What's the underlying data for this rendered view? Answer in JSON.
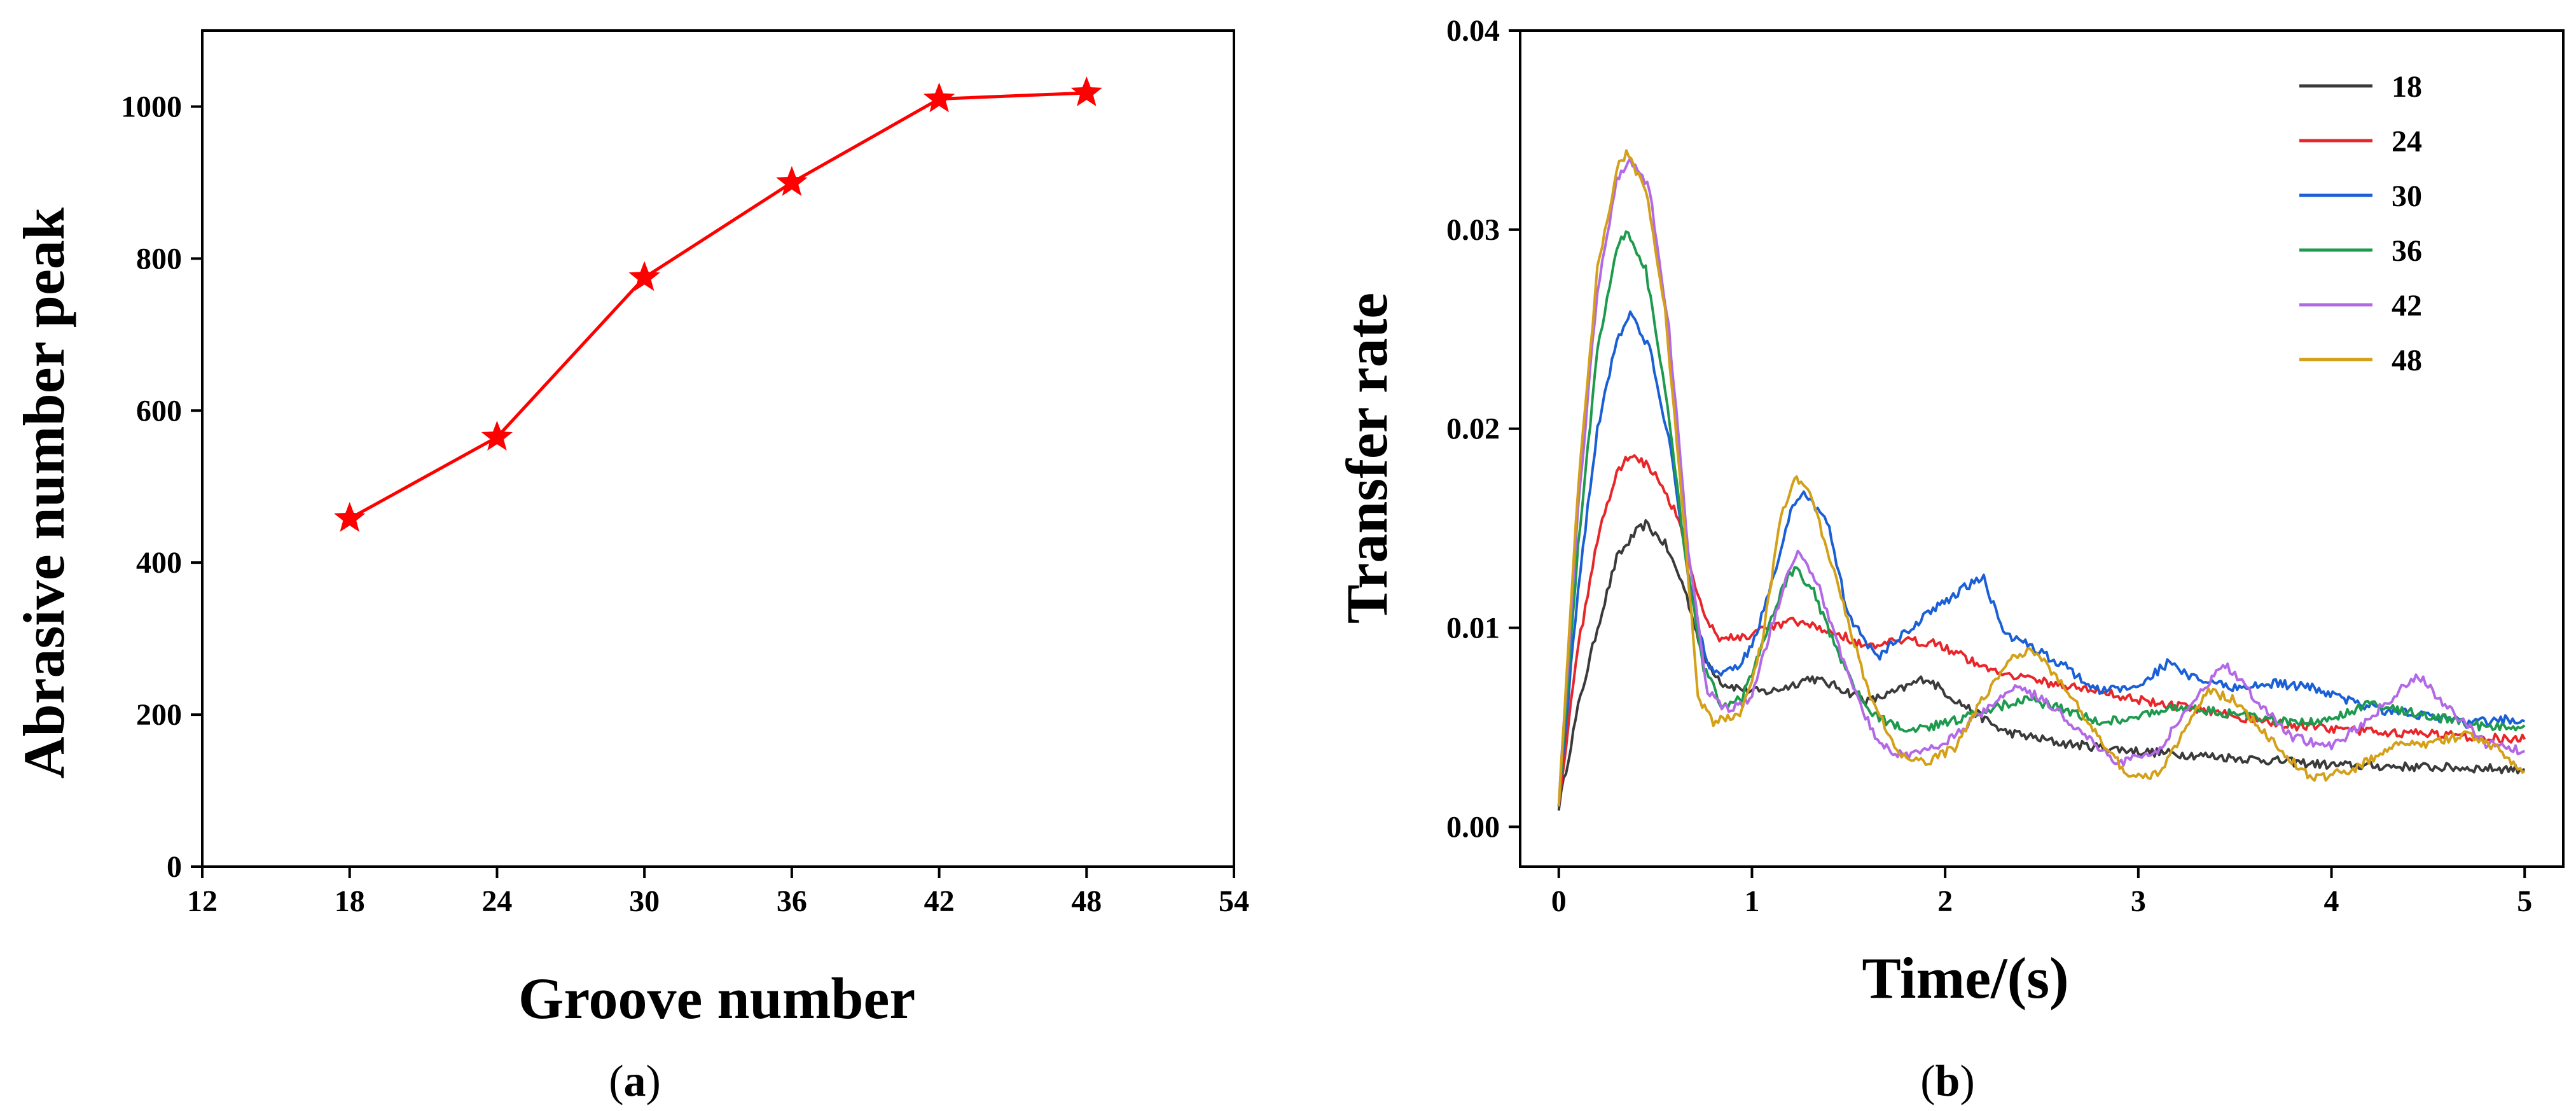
{
  "chart_data": [
    {
      "type": "line",
      "panel_label": "a",
      "xlabel": "Groove number",
      "ylabel": "Abrasive number peak",
      "xlim": [
        12,
        54
      ],
      "ylim": [
        0,
        1100
      ],
      "xticks": [
        12,
        18,
        24,
        30,
        36,
        42,
        48,
        54
      ],
      "yticks": [
        0,
        200,
        400,
        600,
        800,
        1000
      ],
      "marker": "star",
      "color": "#ff0000",
      "series": [
        {
          "x": [
            18,
            24,
            30,
            36,
            42,
            48
          ],
          "y": [
            458,
            565,
            775,
            900,
            1010,
            1018
          ]
        }
      ]
    },
    {
      "type": "line",
      "panel_label": "b",
      "xlabel": "Time/(s)",
      "ylabel": "Transfer rate",
      "xlim": [
        -0.2,
        5.2
      ],
      "ylim": [
        -0.002,
        0.04
      ],
      "xticks": [
        0,
        1,
        2,
        3,
        4,
        5
      ],
      "ytick_labels": [
        "0.00",
        "0.01",
        "0.02",
        "0.03",
        "0.04"
      ],
      "yticks": [
        0,
        0.01,
        0.02,
        0.03,
        0.04
      ],
      "legend_position": "top-right",
      "series": [
        {
          "name": "18",
          "color": "#3a3a3a",
          "points": [
            [
              0,
              0.001
            ],
            [
              0.1,
              0.006
            ],
            [
              0.2,
              0.01
            ],
            [
              0.3,
              0.0135
            ],
            [
              0.4,
              0.0148
            ],
            [
              0.45,
              0.0152
            ],
            [
              0.55,
              0.0142
            ],
            [
              0.65,
              0.012
            ],
            [
              0.75,
              0.0085
            ],
            [
              0.85,
              0.0072
            ],
            [
              1.0,
              0.0068
            ],
            [
              1.1,
              0.0068
            ],
            [
              1.2,
              0.0071
            ],
            [
              1.3,
              0.0075
            ],
            [
              1.45,
              0.007
            ],
            [
              1.6,
              0.0063
            ],
            [
              1.75,
              0.0068
            ],
            [
              1.9,
              0.0075
            ],
            [
              2.05,
              0.0064
            ],
            [
              2.3,
              0.0048
            ],
            [
              2.6,
              0.0042
            ],
            [
              3.0,
              0.0038
            ],
            [
              3.3,
              0.0036
            ],
            [
              3.6,
              0.0034
            ],
            [
              4.0,
              0.0031
            ],
            [
              4.5,
              0.003
            ],
            [
              5.0,
              0.0029
            ]
          ]
        },
        {
          "name": "24",
          "color": "#e8262a",
          "points": [
            [
              0,
              0.0012
            ],
            [
              0.1,
              0.009
            ],
            [
              0.2,
              0.0145
            ],
            [
              0.3,
              0.0178
            ],
            [
              0.38,
              0.0188
            ],
            [
              0.5,
              0.0178
            ],
            [
              0.62,
              0.0155
            ],
            [
              0.72,
              0.0115
            ],
            [
              0.82,
              0.0095
            ],
            [
              0.95,
              0.0095
            ],
            [
              1.1,
              0.01
            ],
            [
              1.2,
              0.0103
            ],
            [
              1.3,
              0.0101
            ],
            [
              1.45,
              0.0097
            ],
            [
              1.6,
              0.009
            ],
            [
              1.75,
              0.0093
            ],
            [
              1.95,
              0.0093
            ],
            [
              2.2,
              0.008
            ],
            [
              2.5,
              0.0073
            ],
            [
              2.8,
              0.0068
            ],
            [
              3.1,
              0.0062
            ],
            [
              3.4,
              0.0058
            ],
            [
              3.7,
              0.0052
            ],
            [
              4.0,
              0.0049
            ],
            [
              4.4,
              0.0047
            ],
            [
              4.8,
              0.0045
            ],
            [
              5.0,
              0.0044
            ]
          ]
        },
        {
          "name": "30",
          "color": "#1a5fd6",
          "points": [
            [
              0,
              0.0012
            ],
            [
              0.1,
              0.012
            ],
            [
              0.2,
              0.02
            ],
            [
              0.3,
              0.0245
            ],
            [
              0.37,
              0.0258
            ],
            [
              0.47,
              0.024
            ],
            [
              0.58,
              0.019
            ],
            [
              0.68,
              0.012
            ],
            [
              0.78,
              0.0078
            ],
            [
              0.9,
              0.0078
            ],
            [
              1.0,
              0.009
            ],
            [
              1.1,
              0.0122
            ],
            [
              1.2,
              0.0158
            ],
            [
              1.28,
              0.0168
            ],
            [
              1.4,
              0.015
            ],
            [
              1.5,
              0.0105
            ],
            [
              1.65,
              0.0085
            ],
            [
              1.8,
              0.0098
            ],
            [
              1.95,
              0.011
            ],
            [
              2.1,
              0.012
            ],
            [
              2.2,
              0.0125
            ],
            [
              2.3,
              0.0098
            ],
            [
              2.45,
              0.009
            ],
            [
              2.6,
              0.0082
            ],
            [
              2.8,
              0.0068
            ],
            [
              3.0,
              0.0071
            ],
            [
              3.15,
              0.0082
            ],
            [
              3.3,
              0.0074
            ],
            [
              3.5,
              0.007
            ],
            [
              3.7,
              0.0072
            ],
            [
              3.9,
              0.007
            ],
            [
              4.1,
              0.0063
            ],
            [
              4.3,
              0.0058
            ],
            [
              4.5,
              0.0056
            ],
            [
              4.7,
              0.0052
            ],
            [
              4.9,
              0.0054
            ],
            [
              5.0,
              0.0053
            ]
          ]
        },
        {
          "name": "36",
          "color": "#1e9a4e",
          "points": [
            [
              0,
              0.0012
            ],
            [
              0.1,
              0.014
            ],
            [
              0.2,
              0.024
            ],
            [
              0.3,
              0.0292
            ],
            [
              0.36,
              0.0299
            ],
            [
              0.45,
              0.028
            ],
            [
              0.55,
              0.022
            ],
            [
              0.65,
              0.014
            ],
            [
              0.75,
              0.008
            ],
            [
              0.85,
              0.006
            ],
            [
              0.95,
              0.0065
            ],
            [
              1.05,
              0.009
            ],
            [
              1.15,
              0.0118
            ],
            [
              1.22,
              0.013
            ],
            [
              1.32,
              0.0118
            ],
            [
              1.45,
              0.0085
            ],
            [
              1.6,
              0.0058
            ],
            [
              1.8,
              0.0048
            ],
            [
              2.0,
              0.0052
            ],
            [
              2.2,
              0.0058
            ],
            [
              2.4,
              0.0064
            ],
            [
              2.6,
              0.006
            ],
            [
              2.8,
              0.0052
            ],
            [
              3.0,
              0.0056
            ],
            [
              3.2,
              0.006
            ],
            [
              3.4,
              0.0058
            ],
            [
              3.6,
              0.0055
            ],
            [
              3.8,
              0.0052
            ],
            [
              4.0,
              0.0054
            ],
            [
              4.2,
              0.0062
            ],
            [
              4.4,
              0.0058
            ],
            [
              4.6,
              0.0054
            ],
            [
              4.8,
              0.005
            ],
            [
              5.0,
              0.0051
            ]
          ]
        },
        {
          "name": "42",
          "color": "#b369e6",
          "points": [
            [
              0,
              0.0012
            ],
            [
              0.1,
              0.016
            ],
            [
              0.2,
              0.027
            ],
            [
              0.3,
              0.0325
            ],
            [
              0.37,
              0.0336
            ],
            [
              0.47,
              0.032
            ],
            [
              0.57,
              0.025
            ],
            [
              0.67,
              0.014
            ],
            [
              0.77,
              0.0068
            ],
            [
              0.88,
              0.0058
            ],
            [
              1.0,
              0.0065
            ],
            [
              1.1,
              0.01
            ],
            [
              1.2,
              0.0132
            ],
            [
              1.25,
              0.0139
            ],
            [
              1.35,
              0.012
            ],
            [
              1.5,
              0.0075
            ],
            [
              1.65,
              0.0042
            ],
            [
              1.8,
              0.0035
            ],
            [
              2.0,
              0.0042
            ],
            [
              2.2,
              0.0058
            ],
            [
              2.35,
              0.007
            ],
            [
              2.5,
              0.0065
            ],
            [
              2.7,
              0.0048
            ],
            [
              2.9,
              0.0032
            ],
            [
              3.1,
              0.0038
            ],
            [
              3.3,
              0.0065
            ],
            [
              3.45,
              0.0082
            ],
            [
              3.6,
              0.0065
            ],
            [
              3.8,
              0.0045
            ],
            [
              4.0,
              0.004
            ],
            [
              4.2,
              0.0055
            ],
            [
              4.35,
              0.0068
            ],
            [
              4.45,
              0.0076
            ],
            [
              4.6,
              0.006
            ],
            [
              4.8,
              0.0042
            ],
            [
              5.0,
              0.0038
            ]
          ]
        },
        {
          "name": "48",
          "color": "#d4a017",
          "points": [
            [
              0,
              0.0012
            ],
            [
              0.1,
              0.017
            ],
            [
              0.2,
              0.028
            ],
            [
              0.3,
              0.033
            ],
            [
              0.35,
              0.0339
            ],
            [
              0.45,
              0.032
            ],
            [
              0.55,
              0.026
            ],
            [
              0.65,
              0.015
            ],
            [
              0.72,
              0.0065
            ],
            [
              0.8,
              0.0052
            ],
            [
              0.95,
              0.0058
            ],
            [
              1.05,
              0.0092
            ],
            [
              1.15,
              0.0155
            ],
            [
              1.22,
              0.0176
            ],
            [
              1.3,
              0.0168
            ],
            [
              1.45,
              0.012
            ],
            [
              1.6,
              0.0068
            ],
            [
              1.75,
              0.0038
            ],
            [
              1.9,
              0.0032
            ],
            [
              2.05,
              0.004
            ],
            [
              2.2,
              0.0065
            ],
            [
              2.35,
              0.0085
            ],
            [
              2.45,
              0.009
            ],
            [
              2.6,
              0.0072
            ],
            [
              2.8,
              0.0045
            ],
            [
              2.95,
              0.0025
            ],
            [
              3.1,
              0.0026
            ],
            [
              3.25,
              0.005
            ],
            [
              3.35,
              0.0068
            ],
            [
              3.5,
              0.0064
            ],
            [
              3.7,
              0.0042
            ],
            [
              3.9,
              0.0024
            ],
            [
              4.1,
              0.0028
            ],
            [
              4.3,
              0.004
            ],
            [
              4.5,
              0.0042
            ],
            [
              4.7,
              0.0046
            ],
            [
              4.85,
              0.004
            ],
            [
              5.0,
              0.0028
            ]
          ]
        }
      ]
    }
  ],
  "captions": {
    "a": {
      "open": "(",
      "letter": "a",
      "close": ")"
    },
    "b": {
      "open": "(",
      "letter": "b",
      "close": ")"
    }
  }
}
